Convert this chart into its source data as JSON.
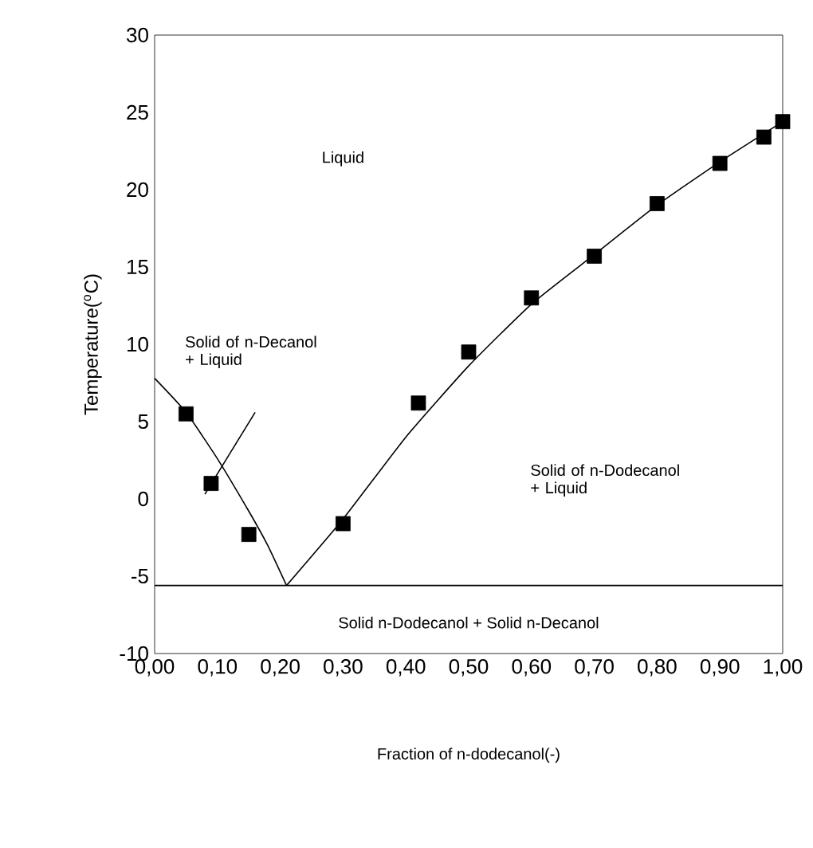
{
  "chart_data": {
    "type": "scatter",
    "xlabel": "Fraction of n-dodecanol(-)",
    "ylabel": "Temperature($^{o}$C)",
    "xlim": [
      0,
      1
    ],
    "ylim": [
      -10,
      30
    ],
    "xticks": [
      {
        "value": 0,
        "label": "0,00"
      },
      {
        "value": 0.1,
        "label": "0,10"
      },
      {
        "value": 0.2,
        "label": "0,20"
      },
      {
        "value": 0.3,
        "label": "0,30"
      },
      {
        "value": 0.4,
        "label": "0,40"
      },
      {
        "value": 0.5,
        "label": "0,50"
      },
      {
        "value": 0.6,
        "label": "0,60"
      },
      {
        "value": 0.7,
        "label": "0,70"
      },
      {
        "value": 0.8,
        "label": "0,80"
      },
      {
        "value": 0.9,
        "label": "0,90"
      },
      {
        "value": 1,
        "label": "1,00"
      }
    ],
    "yticks": [
      -10,
      -5,
      0,
      5,
      10,
      15,
      20,
      25,
      30
    ],
    "series": [
      {
        "marker": "square",
        "color": "#000000",
        "x": [
          0.05,
          0.09,
          0.15,
          0.3,
          0.42,
          0.5,
          0.6,
          0.7,
          0.8,
          0.9,
          0.97,
          1.0
        ],
        "values": [
          5.5,
          1,
          -2.3,
          -1.6,
          6.2,
          9.5,
          13,
          15.7,
          19.1,
          21.7,
          23.4,
          24.4
        ]
      },
      {
        "type": "line",
        "marker": "none",
        "color": "#000000",
        "x": [
          0,
          0.05,
          0.1,
          0.15,
          0.18,
          0.21
        ],
        "values": [
          7.8,
          5.6,
          2.6,
          -0.8,
          -3,
          -5.6
        ]
      },
      {
        "type": "line",
        "marker": "none",
        "color": "#000000",
        "x": [
          0.21,
          0.3,
          0.4,
          0.5,
          0.6,
          0.7,
          0.8,
          0.9,
          1.0
        ],
        "values": [
          -5.6,
          -1.3,
          4,
          8.6,
          12.6,
          15.8,
          19,
          21.8,
          24.4
        ]
      },
      {
        "type": "line",
        "marker": "none",
        "color": "#000000",
        "x": [
          0.08,
          0.16
        ],
        "values": [
          0.3,
          5.6
        ]
      }
    ],
    "ref_lines": [
      {
        "axis": "y",
        "value": -5.6,
        "color": "#000000"
      }
    ],
    "annotations": [
      "Liquid",
      "Solid of n-Decanol + Liquid",
      "Solid of n-Dodecanol + Liquid",
      "Solid n-Dodecanol + Solid n-Decanol"
    ]
  }
}
